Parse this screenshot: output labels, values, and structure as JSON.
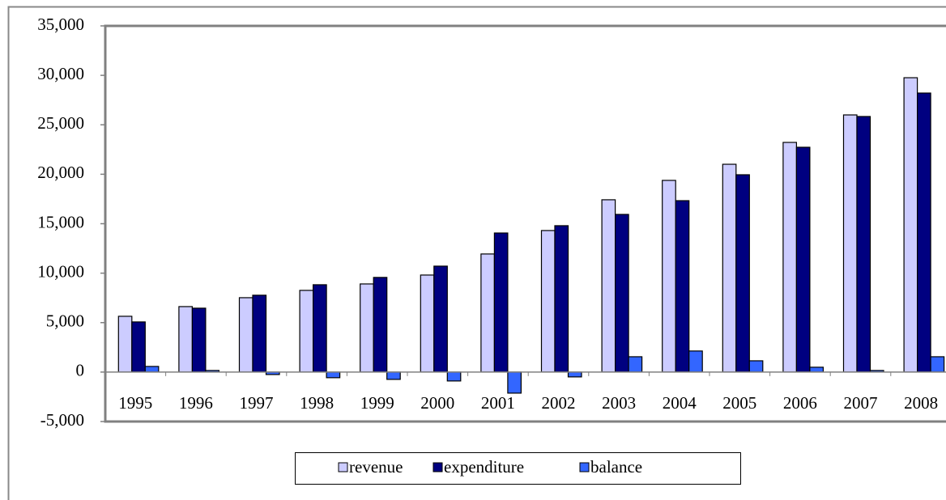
{
  "chart_data": {
    "type": "bar",
    "categories": [
      "1995",
      "1996",
      "1997",
      "1998",
      "1999",
      "2000",
      "2001",
      "2002",
      "2003",
      "2004",
      "2005",
      "2006",
      "2007",
      "2008"
    ],
    "series": [
      {
        "name": "revenue",
        "color": "#ccccff",
        "values": [
          5640,
          6620,
          7520,
          8260,
          8910,
          9810,
          11940,
          14310,
          17420,
          19380,
          21010,
          23220,
          26000,
          29760
        ]
      },
      {
        "name": "expenditure",
        "color": "#000080",
        "values": [
          5070,
          6460,
          7770,
          8830,
          9570,
          10710,
          14060,
          14800,
          15940,
          17330,
          19950,
          22730,
          25840,
          28210
        ]
      },
      {
        "name": "balance",
        "color": "#3366ff",
        "values": [
          570,
          160,
          -250,
          -570,
          -740,
          -900,
          -2130,
          -490,
          1550,
          2130,
          1140,
          490,
          160,
          1550
        ]
      }
    ],
    "ylim": [
      -5000,
      35000
    ],
    "yticks": [
      {
        "value": -5000,
        "label": "-5,000"
      },
      0,
      {
        "value": 5000,
        "label": "5,000"
      },
      {
        "value": 10000,
        "label": "10,000"
      },
      {
        "value": 15000,
        "label": "15,000"
      },
      {
        "value": 20000,
        "label": "20,000"
      },
      {
        "value": 25000,
        "label": "25,000"
      },
      {
        "value": 30000,
        "label": "30,000"
      },
      {
        "value": 35000,
        "label": "35,000"
      }
    ],
    "grid": false,
    "legend": "bottom"
  }
}
